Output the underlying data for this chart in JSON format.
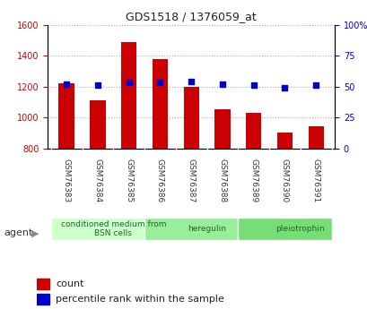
{
  "title": "GDS1518 / 1376059_at",
  "categories": [
    "GSM76383",
    "GSM76384",
    "GSM76385",
    "GSM76386",
    "GSM76387",
    "GSM76388",
    "GSM76389",
    "GSM76390",
    "GSM76391"
  ],
  "counts": [
    1220,
    1110,
    1490,
    1380,
    1200,
    1055,
    1030,
    900,
    945
  ],
  "percentiles": [
    52,
    51,
    53,
    53,
    54,
    52,
    51,
    49,
    51
  ],
  "bar_color": "#cc0000",
  "dot_color": "#0000cc",
  "ylim_left": [
    800,
    1600
  ],
  "ylim_right": [
    0,
    100
  ],
  "yticks_left": [
    800,
    1000,
    1200,
    1400,
    1600
  ],
  "yticks_right": [
    0,
    25,
    50,
    75,
    100
  ],
  "groups": [
    {
      "label": "conditioned medium from\nBSN cells",
      "start": 0,
      "end": 3,
      "color": "#ccffcc"
    },
    {
      "label": "heregulin",
      "start": 3,
      "end": 6,
      "color": "#99ee99"
    },
    {
      "label": "pleiotrophin",
      "start": 6,
      "end": 9,
      "color": "#77dd77"
    }
  ],
  "agent_label": "agent",
  "legend_count_label": "count",
  "legend_pct_label": "percentile rank within the sample",
  "bg_color": "#e8e8e8",
  "plot_bg_color": "#ffffff",
  "grid_color": "#aaaaaa"
}
